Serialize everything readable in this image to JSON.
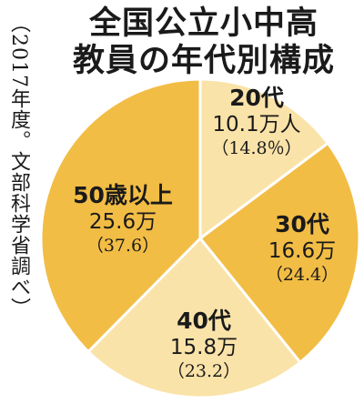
{
  "title_line1": "全国公立小中高",
  "title_line2": "教員の年代別構成",
  "source": "（2017年度。文部科学省調べ）",
  "chart_data": {
    "type": "pie",
    "title": "全国公立小中高教員の年代別構成",
    "slices": [
      {
        "label": "20代",
        "value": 10.1,
        "value_text": "10.1万人",
        "percent": 14.8,
        "percent_text": "（14.8％）",
        "color": "#fae3a8"
      },
      {
        "label": "30代",
        "value": 16.6,
        "value_text": "16.6万",
        "percent": 24.4,
        "percent_text": "（24.4）",
        "color": "#f2bd45"
      },
      {
        "label": "40代",
        "value": 15.8,
        "value_text": "15.8万",
        "percent": 23.2,
        "percent_text": "（23.2）",
        "color": "#fae3a8"
      },
      {
        "label": "50歳以上",
        "value": 25.6,
        "value_text": "25.6万",
        "percent": 37.6,
        "percent_text": "（37.6）",
        "color": "#f2bd45"
      }
    ],
    "start": "12 o'clock",
    "direction": "clockwise"
  }
}
